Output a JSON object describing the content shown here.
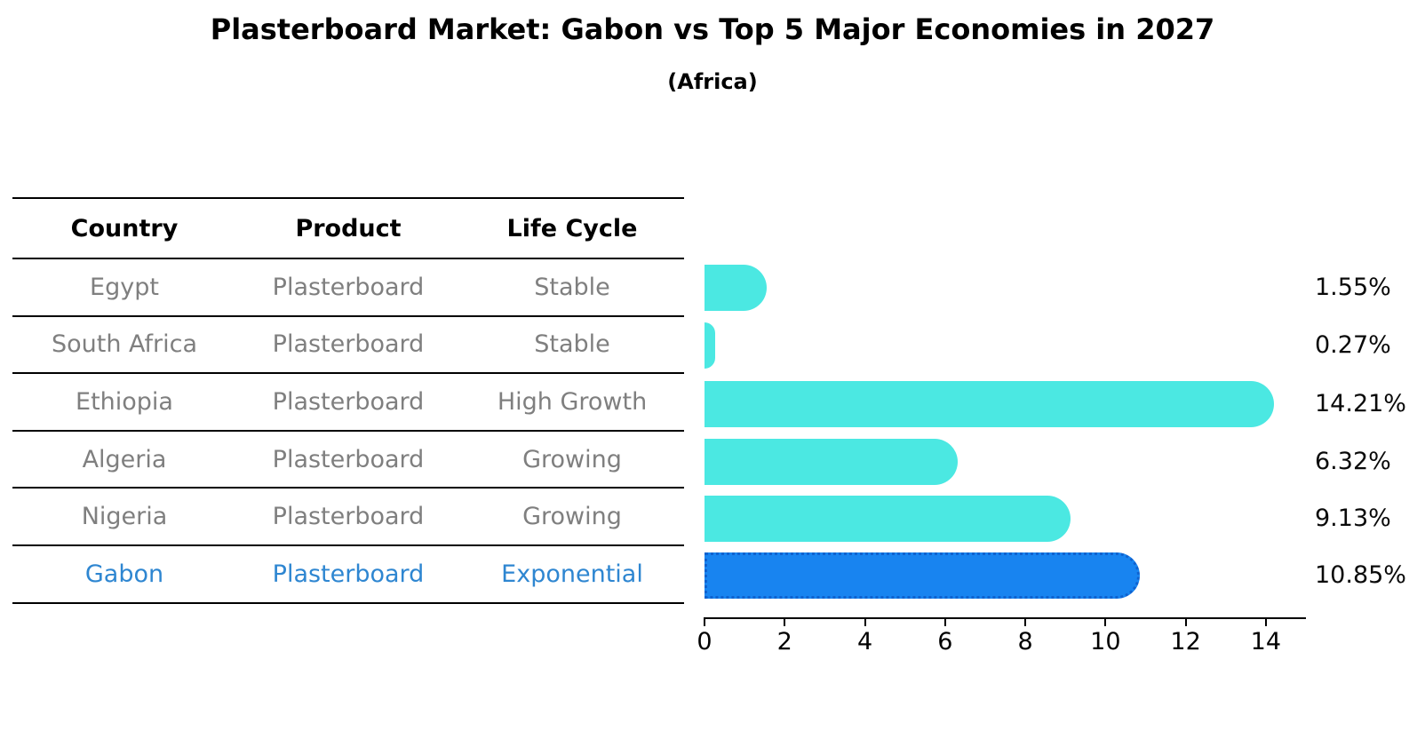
{
  "title": "Plasterboard Market: Gabon vs Top 5 Major Economies in 2027",
  "subtitle": "(Africa)",
  "table": {
    "headers": {
      "country": "Country",
      "product": "Product",
      "life_cycle": "Life Cycle"
    },
    "rows": [
      {
        "country": "Egypt",
        "product": "Plasterboard",
        "life_cycle": "Stable"
      },
      {
        "country": "South Africa",
        "product": "Plasterboard",
        "life_cycle": "Stable"
      },
      {
        "country": "Ethiopia",
        "product": "Plasterboard",
        "life_cycle": "High Growth"
      },
      {
        "country": "Algeria",
        "product": "Plasterboard",
        "life_cycle": "Growing"
      },
      {
        "country": "Nigeria",
        "product": "Plasterboard",
        "life_cycle": "Growing"
      },
      {
        "country": "Gabon",
        "product": "Plasterboard",
        "life_cycle": "Exponential"
      }
    ],
    "highlight_row_index": 5
  },
  "chart_data": {
    "type": "bar",
    "orientation": "horizontal",
    "title": "Plasterboard Market: Gabon vs Top 5 Major Economies in 2027",
    "subtitle": "(Africa)",
    "categories": [
      "Egypt",
      "South Africa",
      "Ethiopia",
      "Algeria",
      "Nigeria",
      "Gabon"
    ],
    "values": [
      1.55,
      0.27,
      14.21,
      6.32,
      9.13,
      10.85
    ],
    "value_labels": [
      "1.55%",
      "0.27%",
      "14.21%",
      "6.32%",
      "9.13%",
      "10.85%"
    ],
    "x_ticks": [
      "0",
      "2",
      "4",
      "6",
      "8",
      "10",
      "12",
      "14"
    ],
    "x_tick_values": [
      0,
      2,
      4,
      6,
      8,
      10,
      12,
      14
    ],
    "xlim": [
      0,
      15
    ],
    "grid": false,
    "legend": false,
    "bar_color": "#4be8e2",
    "highlight_index": 5,
    "highlight_bar_color": "#1884f0",
    "highlight_border_color": "#0f62cf",
    "row_text_color": "#7f7f7f",
    "highlight_text_color": "#2e86d1"
  }
}
